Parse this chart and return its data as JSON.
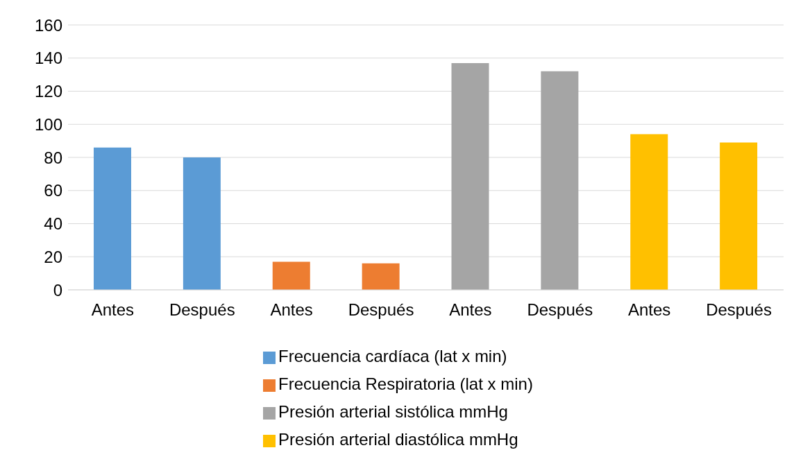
{
  "chart_data": {
    "type": "bar",
    "categories": [
      "Antes",
      "Después",
      "Antes",
      "Después",
      "Antes",
      "Después",
      "Antes",
      "Después"
    ],
    "series": [
      {
        "name": "Frecuencia cardíaca (lat x min)",
        "color": "#5b9bd5",
        "values": [
          86,
          80,
          null,
          null,
          null,
          null,
          null,
          null
        ]
      },
      {
        "name": "Frecuencia Respiratoria (lat x min)",
        "color": "#ed7d31",
        "values": [
          null,
          null,
          17,
          16,
          null,
          null,
          null,
          null
        ]
      },
      {
        "name": "Presión arterial sistólica mmHg",
        "color": "#a5a5a5",
        "values": [
          null,
          null,
          null,
          null,
          137,
          132,
          null,
          null
        ]
      },
      {
        "name": "Presión arterial diastólica mmHg",
        "color": "#ffc000",
        "values": [
          null,
          null,
          null,
          null,
          null,
          null,
          94,
          89
        ]
      }
    ],
    "ylim": [
      0,
      160
    ],
    "yticks": [
      0,
      20,
      40,
      60,
      80,
      100,
      120,
      140,
      160
    ],
    "grid": "y",
    "legend": "bottom"
  }
}
